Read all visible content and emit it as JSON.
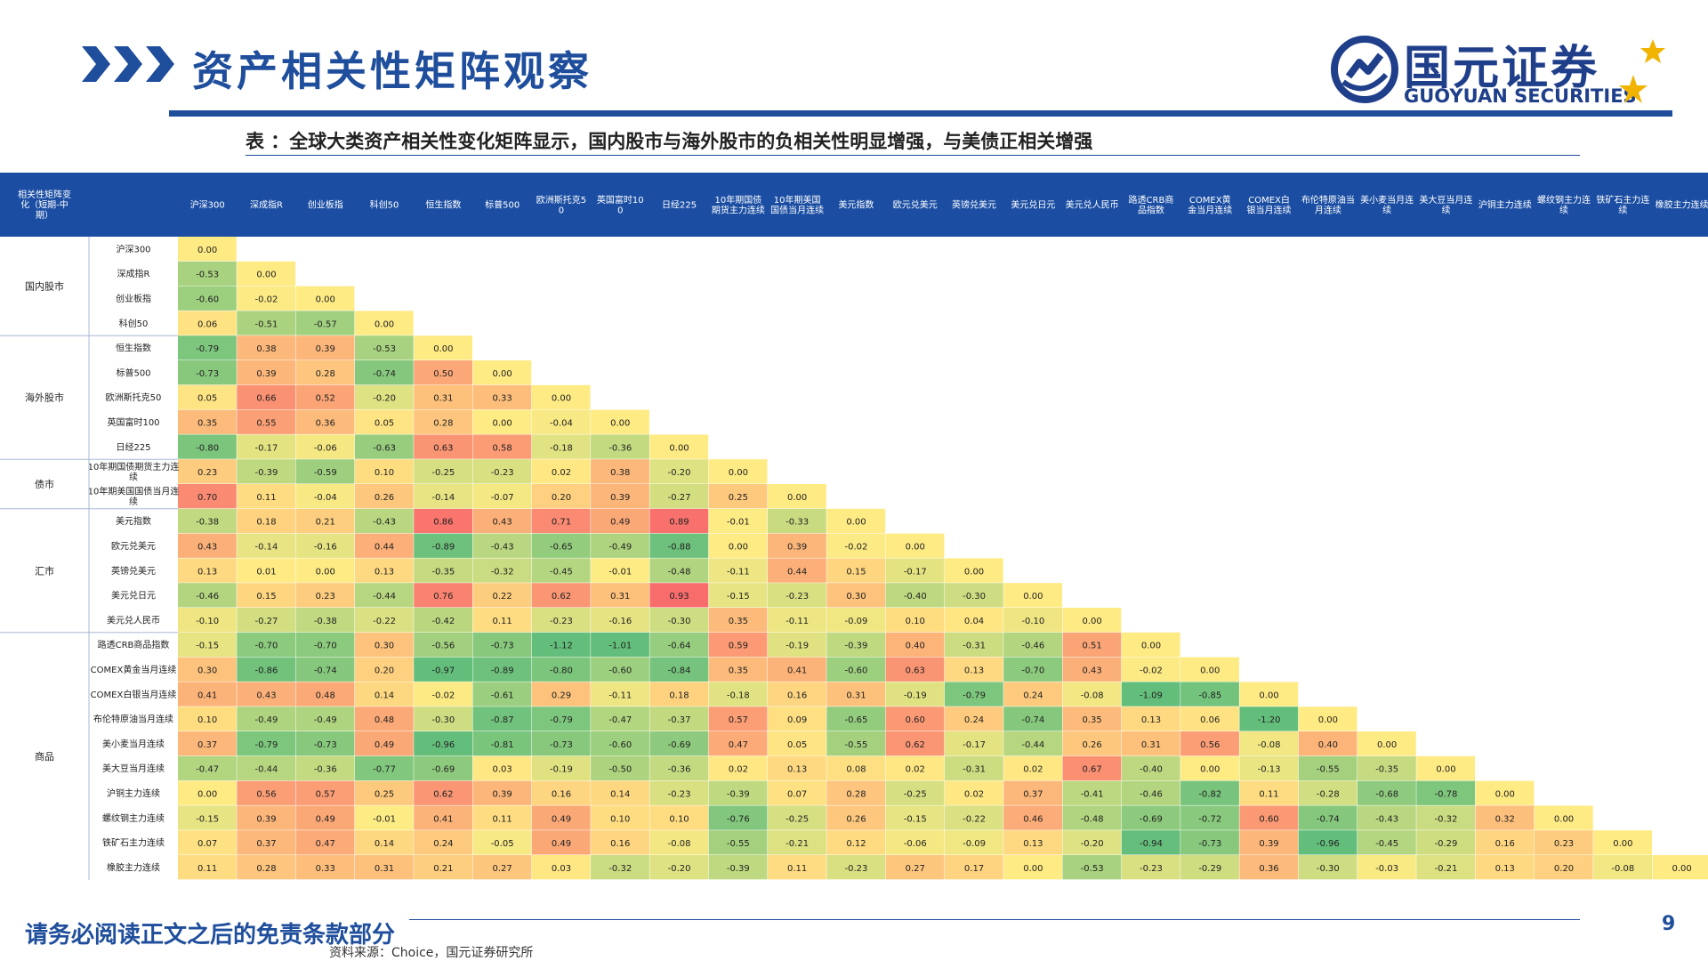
{
  "page": {
    "title": "资产相关性矩阵观察",
    "logo_cn": "国元证券",
    "logo_en": "GUOYUAN SECURITIES",
    "subtitle": "表 ：全球大类资产相关性变化矩阵显示，国内股市与海外股市的负相关性明显增强，与美债正相关增强",
    "footer": "请务必阅读正文之后的免责条款部分",
    "page_number": "9",
    "source": "资料来源：Choice，国元证券研究所"
  },
  "colors": {
    "brand_blue": "#1f4e9c",
    "header_blue": "#1b4ea3",
    "logo_gold": "#f0b400",
    "scale_negative": "#63be7b",
    "scale_zero": "#ffeb84",
    "scale_positive": "#f8696b"
  },
  "chart_data": {
    "type": "heatmap",
    "corner_label": "相关性矩阵变化（短期-中期）",
    "columns": [
      "沪深300",
      "深成指R",
      "创业板指",
      "科创50",
      "恒生指数",
      "标普500",
      "欧洲斯托克50",
      "英国富时100",
      "日经225",
      "10年期国债期货主力连续",
      "10年期美国国债当月连续",
      "美元指数",
      "欧元兑美元",
      "英镑兑美元",
      "美元兑日元",
      "美元兑人民币",
      "路透CRB商品指数",
      "COMEX黄金当月连续",
      "COMEX白银当月连续",
      "布伦特原油当月连续",
      "美小麦当月连续",
      "美大豆当月连续",
      "沪铜主力连续",
      "螺纹钢主力连续",
      "铁矿石主力连续",
      "橡胶主力连续"
    ],
    "rows": [
      "沪深300",
      "深成指R",
      "创业板指",
      "科创50",
      "恒生指数",
      "标普500",
      "欧洲斯托克50",
      "英国富时100",
      "日经225",
      "10年期国债期货主力连续",
      "10年期美国国债当月连续",
      "美元指数",
      "欧元兑美元",
      "英镑兑美元",
      "美元兑日元",
      "美元兑人民币",
      "路透CRB商品指数",
      "COMEX黄金当月连续",
      "COMEX白银当月连续",
      "布伦特原油当月连续",
      "美小麦当月连续",
      "美大豆当月连续",
      "沪铜主力连续",
      "螺纹钢主力连续",
      "铁矿石主力连续",
      "橡胶主力连续"
    ],
    "groups": [
      {
        "name": "国内股市",
        "start": 0,
        "end": 3
      },
      {
        "name": "海外股市",
        "start": 4,
        "end": 8
      },
      {
        "name": "债市",
        "start": 9,
        "end": 10
      },
      {
        "name": "汇市",
        "start": 11,
        "end": 15
      },
      {
        "name": "商品",
        "start": 16,
        "end": 25
      }
    ],
    "values": [
      [
        0.0
      ],
      [
        -0.53,
        0.0
      ],
      [
        -0.6,
        -0.02,
        0.0
      ],
      [
        0.06,
        -0.51,
        -0.57,
        0.0
      ],
      [
        -0.79,
        0.38,
        0.39,
        -0.53,
        0.0
      ],
      [
        -0.73,
        0.39,
        0.28,
        -0.74,
        0.5,
        0.0
      ],
      [
        0.05,
        0.66,
        0.52,
        -0.2,
        0.31,
        0.33,
        0.0
      ],
      [
        0.35,
        0.55,
        0.36,
        0.05,
        0.28,
        0.0,
        -0.04,
        0.0
      ],
      [
        -0.8,
        -0.17,
        -0.06,
        -0.63,
        0.63,
        0.58,
        -0.18,
        -0.36,
        0.0
      ],
      [
        0.23,
        -0.39,
        -0.59,
        0.1,
        -0.25,
        -0.23,
        0.02,
        0.38,
        -0.2,
        0.0
      ],
      [
        0.7,
        0.11,
        -0.04,
        0.26,
        -0.14,
        -0.07,
        0.2,
        0.39,
        -0.27,
        0.25,
        0.0
      ],
      [
        -0.38,
        0.18,
        0.21,
        -0.43,
        0.86,
        0.43,
        0.71,
        0.49,
        0.89,
        -0.01,
        -0.33,
        0.0
      ],
      [
        0.43,
        -0.14,
        -0.16,
        0.44,
        -0.89,
        -0.43,
        -0.65,
        -0.49,
        -0.88,
        0.0,
        0.39,
        -0.02,
        0.0
      ],
      [
        0.13,
        0.01,
        0.0,
        0.13,
        -0.35,
        -0.32,
        -0.45,
        -0.01,
        -0.48,
        -0.11,
        0.44,
        0.15,
        -0.17,
        0.0
      ],
      [
        -0.46,
        0.15,
        0.23,
        -0.44,
        0.76,
        0.22,
        0.62,
        0.31,
        0.93,
        -0.15,
        -0.23,
        0.3,
        -0.4,
        -0.3,
        0.0
      ],
      [
        -0.1,
        -0.27,
        -0.38,
        -0.22,
        -0.42,
        0.11,
        -0.23,
        -0.16,
        -0.3,
        0.35,
        -0.11,
        -0.09,
        0.1,
        0.04,
        -0.1,
        0.0
      ],
      [
        -0.15,
        -0.7,
        -0.7,
        0.3,
        -0.56,
        -0.73,
        -1.12,
        -1.01,
        -0.64,
        0.59,
        -0.19,
        -0.39,
        0.4,
        -0.31,
        -0.46,
        0.51,
        0.0
      ],
      [
        0.3,
        -0.86,
        -0.74,
        0.2,
        -0.97,
        -0.89,
        -0.8,
        -0.6,
        -0.84,
        0.35,
        0.41,
        -0.6,
        0.63,
        0.13,
        -0.7,
        0.43,
        -0.02,
        0.0
      ],
      [
        0.41,
        0.43,
        0.48,
        0.14,
        -0.02,
        -0.61,
        0.29,
        -0.11,
        0.18,
        -0.18,
        0.16,
        0.31,
        -0.19,
        -0.79,
        0.24,
        -0.08,
        -1.09,
        -0.85,
        0.0
      ],
      [
        0.1,
        -0.49,
        -0.49,
        0.48,
        -0.3,
        -0.87,
        -0.79,
        -0.47,
        -0.37,
        0.57,
        0.09,
        -0.65,
        0.6,
        0.24,
        -0.74,
        0.35,
        0.13,
        0.06,
        -1.2,
        0.0
      ],
      [
        0.37,
        -0.79,
        -0.73,
        0.49,
        -0.96,
        -0.81,
        -0.73,
        -0.6,
        -0.69,
        0.47,
        0.05,
        -0.55,
        0.62,
        -0.17,
        -0.44,
        0.26,
        0.31,
        0.56,
        -0.08,
        0.4,
        0.0
      ],
      [
        -0.47,
        -0.44,
        -0.36,
        -0.77,
        -0.69,
        0.03,
        -0.19,
        -0.5,
        -0.36,
        0.02,
        0.13,
        0.08,
        0.02,
        -0.31,
        0.02,
        0.67,
        -0.4,
        0.0,
        -0.13,
        -0.55,
        -0.35,
        0.0
      ],
      [
        0.0,
        0.56,
        0.57,
        0.25,
        0.62,
        0.39,
        0.16,
        0.14,
        -0.23,
        -0.39,
        0.07,
        0.28,
        -0.25,
        0.02,
        0.37,
        -0.41,
        -0.46,
        -0.82,
        0.11,
        -0.28,
        -0.68,
        -0.78,
        0.0
      ],
      [
        -0.15,
        0.39,
        0.49,
        -0.01,
        0.41,
        0.11,
        0.49,
        0.1,
        0.1,
        -0.76,
        -0.25,
        0.26,
        -0.15,
        -0.22,
        0.46,
        -0.48,
        -0.69,
        -0.72,
        0.6,
        -0.74,
        -0.43,
        -0.32,
        0.32,
        0.0
      ],
      [
        0.07,
        0.37,
        0.47,
        0.14,
        0.24,
        -0.05,
        0.49,
        0.16,
        -0.08,
        -0.55,
        -0.21,
        0.12,
        -0.06,
        -0.09,
        0.13,
        -0.2,
        -0.94,
        -0.73,
        0.39,
        -0.96,
        -0.45,
        -0.29,
        0.16,
        0.23,
        0.0
      ],
      [
        0.11,
        0.28,
        0.33,
        0.31,
        0.21,
        0.27,
        0.03,
        -0.32,
        -0.2,
        -0.39,
        0.11,
        -0.23,
        0.27,
        0.17,
        0.0,
        -0.53,
        -0.23,
        -0.29,
        0.36,
        -0.3,
        -0.03,
        -0.21,
        0.13,
        0.2,
        -0.08,
        0.0
      ]
    ]
  }
}
